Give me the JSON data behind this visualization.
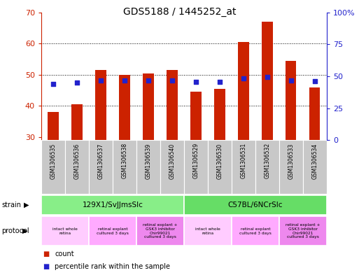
{
  "title": "GDS5188 / 1445252_at",
  "samples": [
    "GSM1306535",
    "GSM1306536",
    "GSM1306537",
    "GSM1306538",
    "GSM1306539",
    "GSM1306540",
    "GSM1306529",
    "GSM1306530",
    "GSM1306531",
    "GSM1306532",
    "GSM1306533",
    "GSM1306534"
  ],
  "count_values": [
    38.0,
    40.5,
    51.5,
    50.0,
    50.5,
    51.5,
    44.5,
    45.5,
    60.5,
    67.0,
    54.5,
    46.0
  ],
  "percentile_values": [
    44.0,
    45.0,
    46.5,
    46.5,
    46.5,
    47.0,
    45.5,
    45.5,
    48.5,
    49.5,
    47.0,
    46.0
  ],
  "ylim_left": [
    29,
    70
  ],
  "ylim_right": [
    0,
    100
  ],
  "yticks_left": [
    30,
    40,
    50,
    60,
    70
  ],
  "yticks_right": [
    0,
    25,
    50,
    75,
    100
  ],
  "left_tick_labels": [
    "30",
    "40",
    "50",
    "60",
    "70"
  ],
  "right_tick_labels": [
    "0",
    "25",
    "50",
    "75",
    "100%"
  ],
  "bar_color": "#cc2200",
  "dot_color": "#2222cc",
  "strain_groups": [
    {
      "label": "129X1/SvJJmsSlc",
      "start": 0,
      "end": 5,
      "color": "#88ee88"
    },
    {
      "label": "C57BL/6NCrSlc",
      "start": 6,
      "end": 11,
      "color": "#66dd66"
    }
  ],
  "protocol_groups": [
    {
      "label": "intact whole\nretina",
      "start": 0,
      "end": 1,
      "color": "#ffccff"
    },
    {
      "label": "retinal explant\ncultured 3 days",
      "start": 2,
      "end": 3,
      "color": "#ffaaff"
    },
    {
      "label": "retinal explant +\nGSK3 inhibitor\nChir99021\ncultured 3 days",
      "start": 4,
      "end": 5,
      "color": "#ee88ee"
    },
    {
      "label": "intact whole\nretina",
      "start": 6,
      "end": 7,
      "color": "#ffccff"
    },
    {
      "label": "retinal explant\ncultured 3 days",
      "start": 8,
      "end": 9,
      "color": "#ffaaff"
    },
    {
      "label": "retinal explant +\nGSK3 inhibitor\nChir99021\ncultured 3 days",
      "start": 10,
      "end": 11,
      "color": "#ee88ee"
    }
  ],
  "background_color": "#ffffff",
  "left_axis_color": "#cc2200",
  "right_axis_color": "#2222cc",
  "legend_items": [
    {
      "color": "#cc2200",
      "label": "count"
    },
    {
      "color": "#2222cc",
      "label": "percentile rank within the sample"
    }
  ]
}
